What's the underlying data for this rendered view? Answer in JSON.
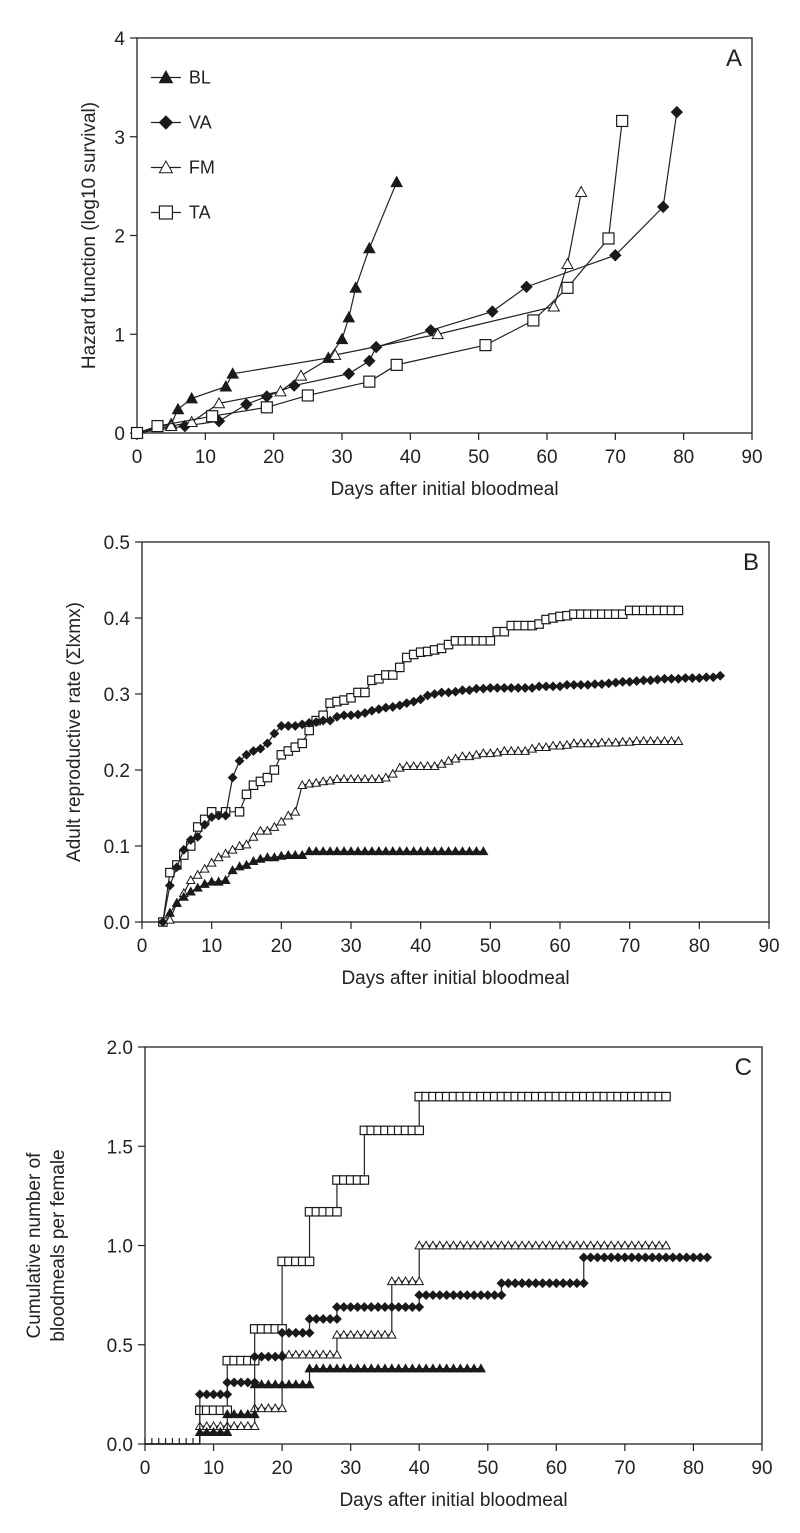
{
  "chart_data": [
    {
      "type": "line",
      "panel": "A",
      "xlabel": "Days after initial bloodmeal",
      "ylabel": "Hazard function (log10 survival)",
      "xlim": [
        0,
        90
      ],
      "ylim": [
        0,
        4
      ],
      "xticks": [
        0,
        10,
        20,
        30,
        40,
        50,
        60,
        70,
        80,
        90
      ],
      "yticks": [
        0,
        1,
        2,
        3,
        4
      ],
      "legend": [
        "BL",
        "VA",
        "FM",
        "TA"
      ],
      "legend_position": "top-left",
      "series": [
        {
          "name": "BL",
          "marker": "triangle-filled",
          "x": [
            0,
            5,
            6,
            8,
            13,
            14,
            28,
            30,
            31,
            32,
            34,
            38
          ],
          "y": [
            0,
            0.09,
            0.24,
            0.35,
            0.47,
            0.6,
            0.76,
            0.95,
            1.17,
            1.47,
            1.87,
            2.54
          ]
        },
        {
          "name": "VA",
          "marker": "diamond-filled",
          "x": [
            0,
            7,
            12,
            16,
            19,
            23,
            31,
            34,
            35,
            43,
            52,
            57,
            70,
            77,
            79
          ],
          "y": [
            0,
            0.07,
            0.12,
            0.29,
            0.37,
            0.48,
            0.6,
            0.73,
            0.87,
            1.04,
            1.23,
            1.48,
            1.8,
            2.29,
            3.25
          ]
        },
        {
          "name": "FM",
          "marker": "triangle-open",
          "x": [
            0,
            5,
            8,
            12,
            21,
            24,
            29,
            44,
            61,
            63,
            65
          ],
          "y": [
            0,
            0.07,
            0.11,
            0.3,
            0.42,
            0.58,
            0.79,
            1.0,
            1.28,
            1.71,
            2.44
          ]
        },
        {
          "name": "TA",
          "marker": "square-open",
          "x": [
            0,
            3,
            11,
            19,
            25,
            34,
            38,
            51,
            58,
            63,
            69,
            71
          ],
          "y": [
            0,
            0.07,
            0.17,
            0.26,
            0.38,
            0.52,
            0.69,
            0.89,
            1.14,
            1.47,
            1.97,
            3.16
          ]
        }
      ]
    },
    {
      "type": "line",
      "panel": "B",
      "xlabel": "Days after initial bloodmeal",
      "ylabel": "Adult reproductive rate (Σlxmx)",
      "xlim": [
        0,
        90
      ],
      "ylim": [
        0,
        0.5
      ],
      "xticks": [
        0,
        10,
        20,
        30,
        40,
        50,
        60,
        70,
        80,
        90
      ],
      "yticks": [
        "0.0",
        "0.1",
        "0.2",
        "0.3",
        "0.4",
        "0.5"
      ],
      "series": [
        {
          "name": "TA",
          "marker": "square-open",
          "x": [
            3,
            4,
            5,
            6,
            7,
            8,
            9,
            10,
            12,
            14,
            15,
            16,
            17,
            18,
            19,
            20,
            21,
            22,
            23,
            24,
            25,
            26,
            27,
            28,
            29,
            30,
            31,
            32,
            33,
            34,
            35,
            36,
            37,
            38,
            39,
            40,
            41,
            42,
            43,
            44,
            45,
            46,
            47,
            48,
            49,
            50,
            51,
            52,
            53,
            54,
            55,
            56,
            57,
            58,
            59,
            60,
            61,
            62,
            63,
            64,
            65,
            66,
            67,
            68,
            69,
            70,
            71,
            72,
            73,
            74,
            75,
            76,
            77
          ],
          "y": [
            0,
            0.065,
            0.075,
            0.088,
            0.1,
            0.125,
            0.135,
            0.145,
            0.145,
            0.145,
            0.168,
            0.18,
            0.185,
            0.19,
            0.2,
            0.22,
            0.225,
            0.23,
            0.235,
            0.252,
            0.265,
            0.272,
            0.288,
            0.29,
            0.292,
            0.295,
            0.302,
            0.302,
            0.318,
            0.32,
            0.325,
            0.325,
            0.335,
            0.348,
            0.352,
            0.355,
            0.356,
            0.358,
            0.36,
            0.365,
            0.37,
            0.37,
            0.37,
            0.37,
            0.37,
            0.37,
            0.382,
            0.382,
            0.39,
            0.39,
            0.39,
            0.39,
            0.392,
            0.398,
            0.4,
            0.402,
            0.403,
            0.405,
            0.405,
            0.405,
            0.405,
            0.405,
            0.405,
            0.405,
            0.405,
            0.41,
            0.41,
            0.41,
            0.41,
            0.41,
            0.41,
            0.41,
            0.41
          ]
        },
        {
          "name": "VA",
          "marker": "diamond-filled",
          "x": [
            3,
            4,
            5,
            6,
            7,
            8,
            9,
            10,
            11,
            12,
            13,
            14,
            15,
            16,
            17,
            18,
            19,
            20,
            21,
            22,
            23,
            24,
            25,
            26,
            27,
            28,
            29,
            30,
            31,
            32,
            33,
            34,
            35,
            36,
            37,
            38,
            39,
            40,
            41,
            42,
            43,
            44,
            45,
            46,
            47,
            48,
            49,
            50,
            51,
            52,
            53,
            54,
            55,
            56,
            57,
            58,
            59,
            60,
            61,
            62,
            63,
            64,
            65,
            66,
            67,
            68,
            69,
            70,
            71,
            72,
            73,
            74,
            75,
            76,
            77,
            78,
            79,
            80,
            81,
            82,
            83
          ],
          "y": [
            0,
            0.048,
            0.072,
            0.095,
            0.108,
            0.112,
            0.128,
            0.138,
            0.14,
            0.14,
            0.19,
            0.212,
            0.22,
            0.225,
            0.228,
            0.235,
            0.248,
            0.258,
            0.258,
            0.258,
            0.26,
            0.262,
            0.263,
            0.265,
            0.265,
            0.27,
            0.272,
            0.272,
            0.273,
            0.275,
            0.278,
            0.28,
            0.282,
            0.283,
            0.285,
            0.288,
            0.29,
            0.293,
            0.298,
            0.3,
            0.302,
            0.302,
            0.303,
            0.305,
            0.305,
            0.307,
            0.307,
            0.308,
            0.308,
            0.308,
            0.308,
            0.308,
            0.308,
            0.308,
            0.31,
            0.31,
            0.31,
            0.31,
            0.312,
            0.312,
            0.312,
            0.312,
            0.313,
            0.313,
            0.314,
            0.315,
            0.316,
            0.316,
            0.317,
            0.318,
            0.318,
            0.319,
            0.32,
            0.32,
            0.32,
            0.321,
            0.321,
            0.321,
            0.322,
            0.322,
            0.324
          ]
        },
        {
          "name": "FM",
          "marker": "triangle-open",
          "x": [
            4,
            5,
            6,
            7,
            8,
            9,
            10,
            11,
            12,
            13,
            14,
            15,
            16,
            17,
            18,
            19,
            20,
            21,
            22,
            23,
            24,
            25,
            26,
            27,
            28,
            29,
            30,
            31,
            32,
            33,
            34,
            35,
            36,
            37,
            38,
            39,
            40,
            41,
            42,
            43,
            44,
            45,
            46,
            47,
            48,
            49,
            50,
            51,
            52,
            53,
            54,
            55,
            56,
            57,
            58,
            59,
            60,
            61,
            62,
            63,
            64,
            65,
            66,
            67,
            68,
            69,
            70,
            71,
            72,
            73,
            74,
            75,
            76,
            77
          ],
          "y": [
            0.003,
            0.025,
            0.038,
            0.055,
            0.062,
            0.07,
            0.078,
            0.085,
            0.09,
            0.095,
            0.1,
            0.102,
            0.112,
            0.12,
            0.12,
            0.125,
            0.132,
            0.14,
            0.145,
            0.18,
            0.182,
            0.183,
            0.185,
            0.186,
            0.188,
            0.188,
            0.188,
            0.188,
            0.188,
            0.188,
            0.188,
            0.19,
            0.195,
            0.203,
            0.205,
            0.205,
            0.205,
            0.205,
            0.205,
            0.208,
            0.212,
            0.215,
            0.218,
            0.218,
            0.22,
            0.222,
            0.222,
            0.223,
            0.225,
            0.225,
            0.225,
            0.225,
            0.228,
            0.23,
            0.23,
            0.232,
            0.232,
            0.233,
            0.235,
            0.235,
            0.235,
            0.235,
            0.236,
            0.236,
            0.236,
            0.237,
            0.237,
            0.238,
            0.238,
            0.238,
            0.238,
            0.238,
            0.238,
            0.238
          ]
        },
        {
          "name": "BL",
          "marker": "triangle-filled",
          "x": [
            4,
            5,
            6,
            7,
            8,
            9,
            10,
            11,
            12,
            13,
            14,
            15,
            16,
            17,
            18,
            19,
            20,
            21,
            22,
            23,
            24,
            25,
            26,
            27,
            28,
            29,
            30,
            31,
            32,
            33,
            34,
            35,
            36,
            37,
            38,
            39,
            40,
            41,
            42,
            43,
            44,
            45,
            46,
            47,
            48,
            49
          ],
          "y": [
            0.012,
            0.025,
            0.033,
            0.04,
            0.045,
            0.05,
            0.053,
            0.053,
            0.055,
            0.068,
            0.073,
            0.075,
            0.08,
            0.083,
            0.085,
            0.085,
            0.087,
            0.088,
            0.088,
            0.088,
            0.093,
            0.093,
            0.093,
            0.093,
            0.093,
            0.093,
            0.093,
            0.093,
            0.093,
            0.093,
            0.093,
            0.093,
            0.093,
            0.093,
            0.093,
            0.093,
            0.093,
            0.093,
            0.093,
            0.093,
            0.093,
            0.093,
            0.093,
            0.093,
            0.093,
            0.093
          ]
        }
      ]
    },
    {
      "type": "line",
      "panel": "C",
      "xlabel": "Days after initial bloodmeal",
      "ylabel": [
        "Cumulative number of",
        "bloodmeals per female"
      ],
      "xlim": [
        0,
        90
      ],
      "ylim": [
        0,
        2
      ],
      "xticks": [
        0,
        10,
        20,
        30,
        40,
        50,
        60,
        70,
        80,
        90
      ],
      "yticks": [
        "0.0",
        "0.5",
        "1.0",
        "1.5",
        "2.0"
      ],
      "steps": [
        {
          "name": "TA",
          "marker": "square-open",
          "start": 8,
          "end": 76,
          "levels": [
            [
              8,
              0.17
            ],
            [
              12,
              0.42
            ],
            [
              16,
              0.58
            ],
            [
              20,
              0.92
            ],
            [
              24,
              1.17
            ],
            [
              28,
              1.33
            ],
            [
              32,
              1.58
            ],
            [
              40,
              1.75
            ]
          ]
        },
        {
          "name": "FM",
          "marker": "triangle-open",
          "start": 8,
          "end": 76,
          "levels": [
            [
              8,
              0.09
            ],
            [
              12,
              0.09
            ],
            [
              16,
              0.18
            ],
            [
              20,
              0.45
            ],
            [
              28,
              0.55
            ],
            [
              36,
              0.82
            ],
            [
              40,
              1.0
            ]
          ]
        },
        {
          "name": "VA",
          "marker": "diamond-filled",
          "start": 8,
          "end": 82,
          "levels": [
            [
              8,
              0.25
            ],
            [
              12,
              0.31
            ],
            [
              16,
              0.44
            ],
            [
              20,
              0.56
            ],
            [
              24,
              0.63
            ],
            [
              28,
              0.69
            ],
            [
              40,
              0.75
            ],
            [
              52,
              0.81
            ],
            [
              64,
              0.94
            ]
          ]
        },
        {
          "name": "BL",
          "marker": "triangle-filled",
          "start": 8,
          "end": 49,
          "levels": [
            [
              8,
              0.06
            ],
            [
              12,
              0.15
            ],
            [
              16,
              0.3
            ],
            [
              24,
              0.38
            ]
          ]
        }
      ]
    }
  ]
}
